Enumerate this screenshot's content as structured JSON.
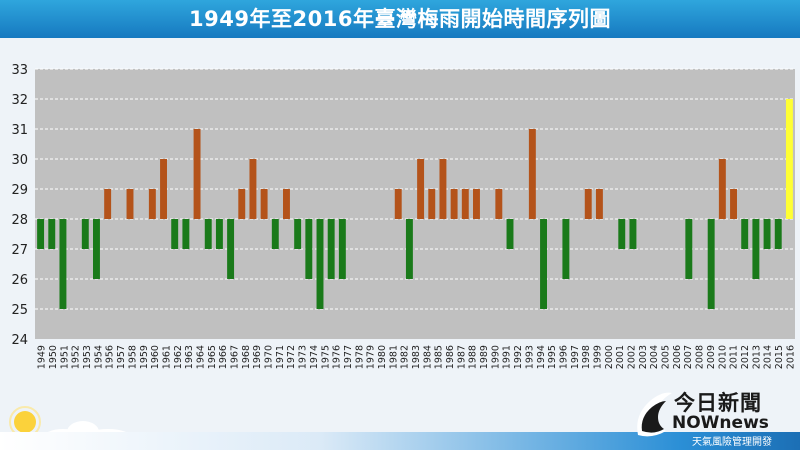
{
  "header": {
    "title": "1949年至2016年臺灣梅雨開始時間序列圖"
  },
  "brand": {
    "line1": "今日新聞",
    "line2": "NOWnews",
    "line3": "天氣風險管理開發"
  },
  "colors": {
    "banner": "#1a86cc",
    "plot_bg": "#c0c0c0",
    "above": "#b4531a",
    "below": "#1a7a1a",
    "highlight": "#ffff33"
  },
  "chart_data": {
    "type": "bar",
    "title": "1949年至2016年臺灣梅雨開始時間序列圖",
    "baseline": 28,
    "ylim": [
      24,
      33
    ],
    "yticks": [
      24,
      25,
      26,
      27,
      28,
      29,
      30,
      31,
      32,
      33
    ],
    "grid": true,
    "categories": [
      "1949",
      "1950",
      "1951",
      "1952",
      "1953",
      "1954",
      "1955",
      "1956",
      "1957",
      "1958",
      "1959",
      "1960",
      "1961",
      "1962",
      "1963",
      "1964",
      "1965",
      "1966",
      "1967",
      "1968",
      "1969",
      "1970",
      "1971",
      "1972",
      "1973",
      "1974",
      "1975",
      "1976",
      "1977",
      "1978",
      "1979",
      "1980",
      "1981",
      "1982",
      "1983",
      "1984",
      "1985",
      "1986",
      "1987",
      "1988",
      "1989",
      "1990",
      "1991",
      "1992",
      "1993",
      "1994",
      "1995",
      "1996",
      "1997",
      "1998",
      "1999",
      "2000",
      "2001",
      "2002",
      "2003",
      "2004",
      "2005",
      "2006",
      "2007",
      "2008",
      "2009",
      "2010",
      "2011",
      "2012",
      "2013",
      "2014",
      "2015",
      "2016"
    ],
    "xtick_labels": [
      "1949",
      "1950",
      "1951",
      "1952",
      "1953",
      "1954",
      "1956",
      "1957",
      "1958",
      "1959",
      "1960",
      "1961",
      "1962",
      "1963",
      "1964",
      "1965",
      "1966",
      "1967",
      "1968",
      "1969",
      "1970",
      "1971",
      "1972",
      "1973",
      "1974",
      "1975",
      "1976",
      "1977",
      "1978",
      "1979",
      "1980",
      "1981",
      "1982",
      "1983",
      "1984",
      "1985",
      "1986",
      "1987",
      "1988",
      "1989",
      "1990",
      "1991",
      "1992",
      "1993",
      "1994",
      "1995",
      "1996",
      "1997",
      "1998",
      "1999",
      "2000",
      "2001",
      "2002",
      "2003",
      "2004",
      "2005",
      "2006",
      "2007",
      "2008",
      "2009",
      "2010",
      "2011",
      "2012",
      "2013",
      "2014",
      "2015",
      "2016"
    ],
    "values": [
      27,
      27,
      25,
      28,
      27,
      26,
      29,
      28,
      29,
      28,
      29,
      30,
      27,
      27,
      31,
      27,
      27,
      26,
      29,
      30,
      29,
      27,
      29,
      27,
      26,
      25,
      26,
      26,
      28,
      28,
      28,
      28,
      29,
      26,
      30,
      29,
      30,
      29,
      29,
      29,
      28,
      29,
      27,
      28,
      31,
      25,
      28,
      26,
      28,
      29,
      29,
      28,
      27,
      27,
      28,
      28,
      28,
      28,
      26,
      28,
      25,
      30,
      29,
      27,
      26,
      27,
      27,
      32
    ]
  }
}
